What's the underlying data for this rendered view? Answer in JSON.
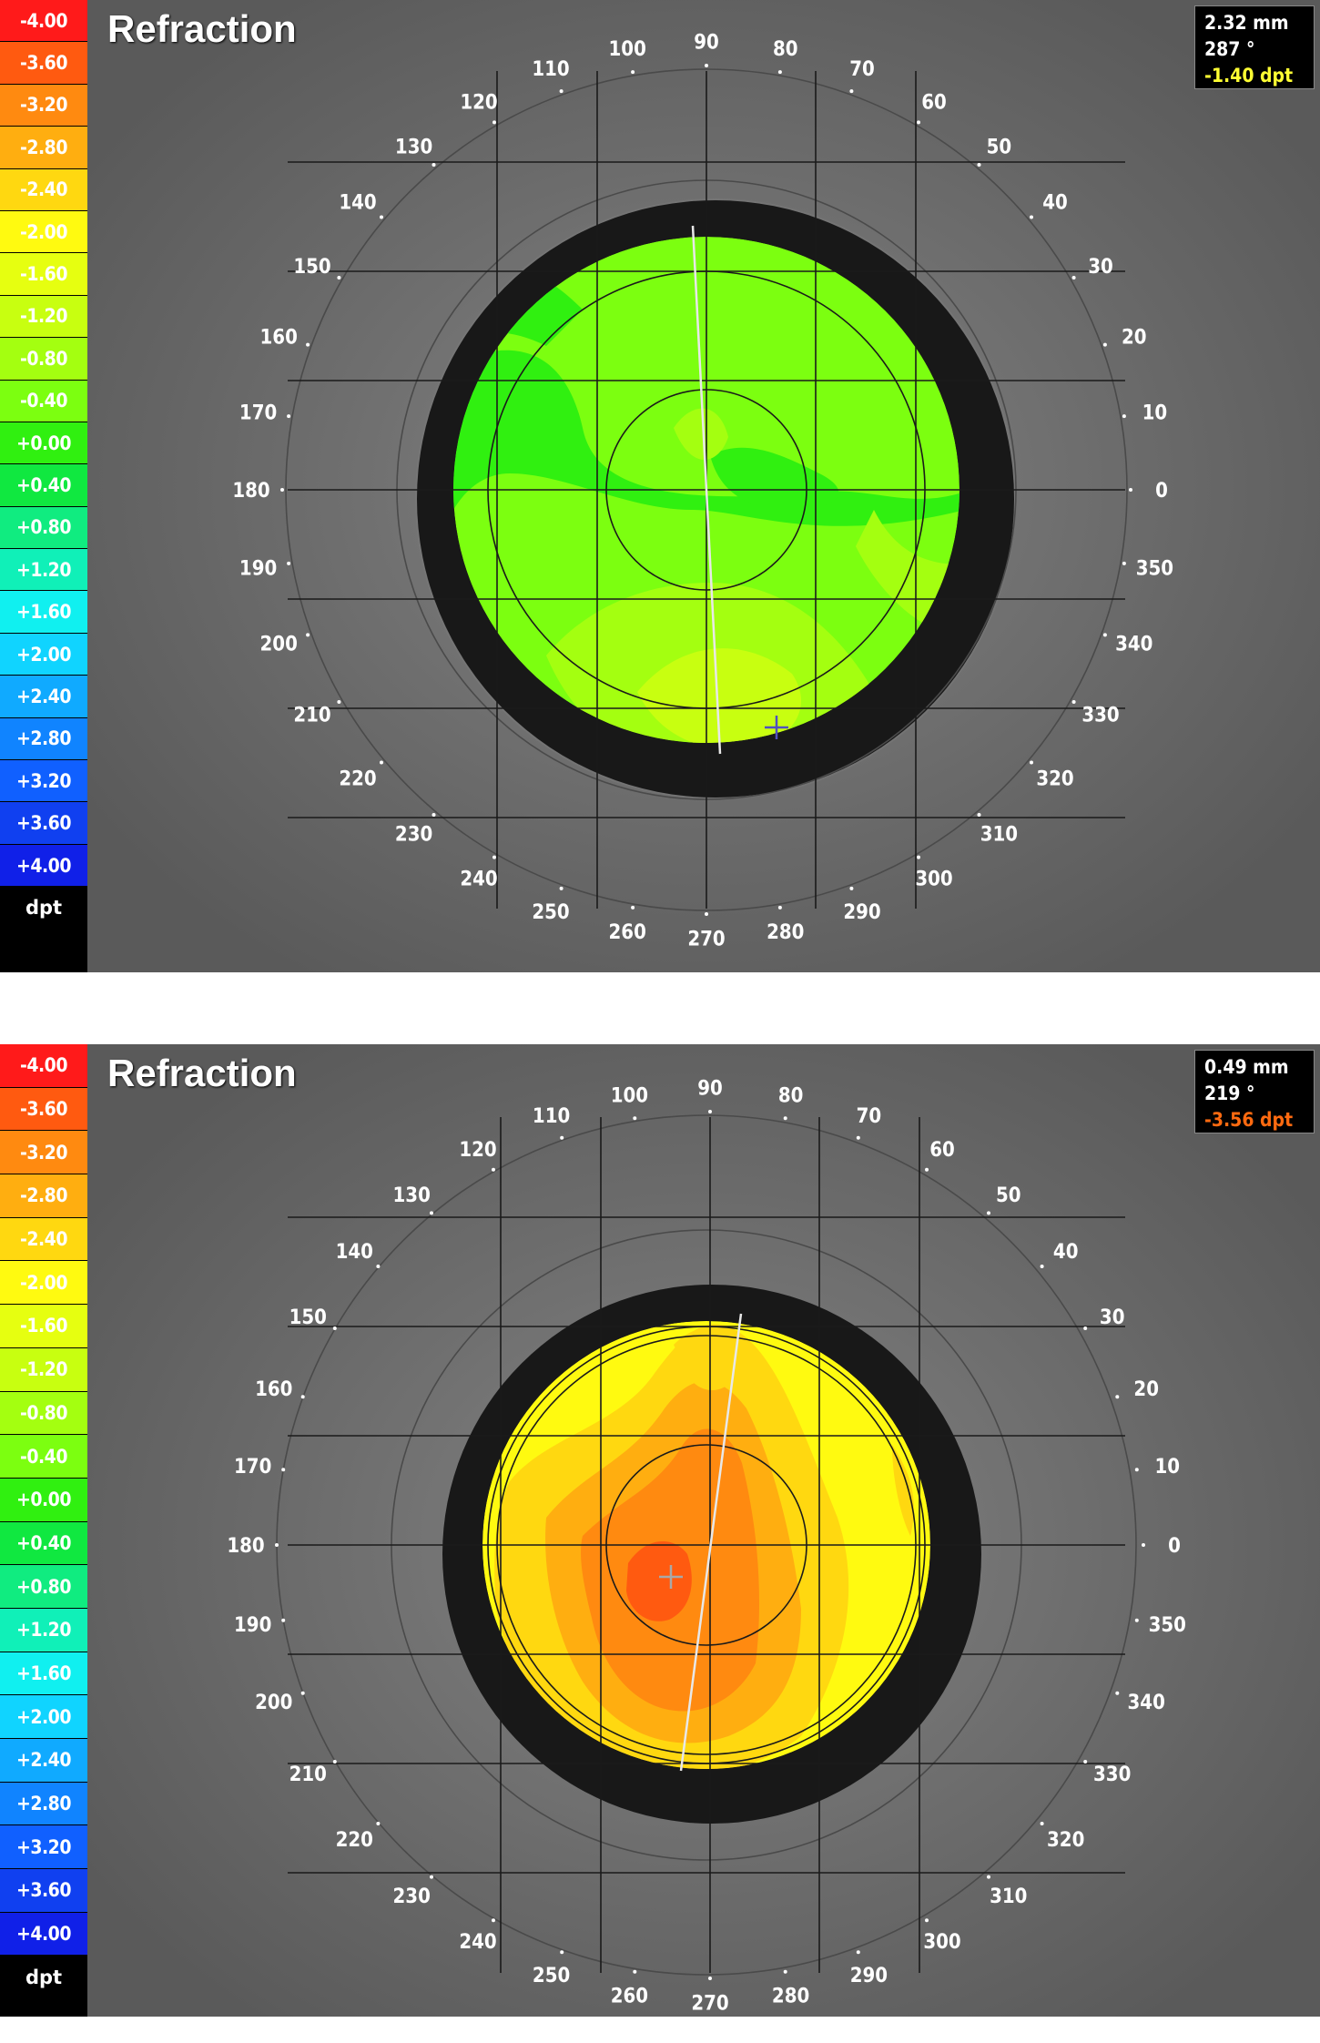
{
  "legend": {
    "items": [
      {
        "label": "-4.00",
        "color": "#ff1a1a"
      },
      {
        "label": "-3.60",
        "color": "#ff5a10"
      },
      {
        "label": "-3.20",
        "color": "#ff8a10"
      },
      {
        "label": "-2.80",
        "color": "#ffae10"
      },
      {
        "label": "-2.40",
        "color": "#ffd810"
      },
      {
        "label": "-2.00",
        "color": "#fffa10"
      },
      {
        "label": "-1.60",
        "color": "#e6ff10"
      },
      {
        "label": "-1.20",
        "color": "#c8ff10"
      },
      {
        "label": "-0.80",
        "color": "#a4ff10"
      },
      {
        "label": "-0.40",
        "color": "#7cff10"
      },
      {
        "label": "+0.00",
        "color": "#30f010"
      },
      {
        "label": "+0.40",
        "color": "#10e840"
      },
      {
        "label": "+0.80",
        "color": "#10ec80"
      },
      {
        "label": "+1.20",
        "color": "#10f0b8"
      },
      {
        "label": "+1.60",
        "color": "#10f0f0"
      },
      {
        "label": "+2.00",
        "color": "#10d4ff"
      },
      {
        "label": "+2.40",
        "color": "#10aaff"
      },
      {
        "label": "+2.80",
        "color": "#1084ff"
      },
      {
        "label": "+3.20",
        "color": "#1060ff"
      },
      {
        "label": "+3.60",
        "color": "#1040f0"
      },
      {
        "label": "+4.00",
        "color": "#1020e8"
      }
    ],
    "unit": "dpt"
  },
  "angle_labels": [
    "0",
    "10",
    "20",
    "30",
    "40",
    "50",
    "60",
    "70",
    "80",
    "90",
    "100",
    "110",
    "120",
    "130",
    "140",
    "150",
    "160",
    "170",
    "180",
    "190",
    "200",
    "210",
    "220",
    "230",
    "240",
    "250",
    "260",
    "270",
    "280",
    "290",
    "300",
    "310",
    "320",
    "330",
    "340",
    "350"
  ],
  "panels": [
    {
      "title": "Refraction",
      "readout": {
        "distance": "2.32 mm",
        "angle": "287 °",
        "power": "-1.40 dpt",
        "power_color": "#ffff33"
      },
      "meridian_angle_deg": 87,
      "cursor_color": "#5050c0",
      "base_color": "#7cff10",
      "zone_colors": [
        "#30f010",
        "#a4ff10",
        "#c8ff10"
      ]
    },
    {
      "title": "Refraction",
      "readout": {
        "distance": "0.49 mm",
        "angle": "219 °",
        "power": "-3.56 dpt",
        "power_color": "#ff6a10"
      },
      "meridian_angle_deg": 75,
      "cursor_color": "#a0a0a0",
      "base_color": "#fffa10",
      "zone_colors": [
        "#ffd810",
        "#ffae10",
        "#ff8a10",
        "#ff5a10"
      ]
    }
  ]
}
